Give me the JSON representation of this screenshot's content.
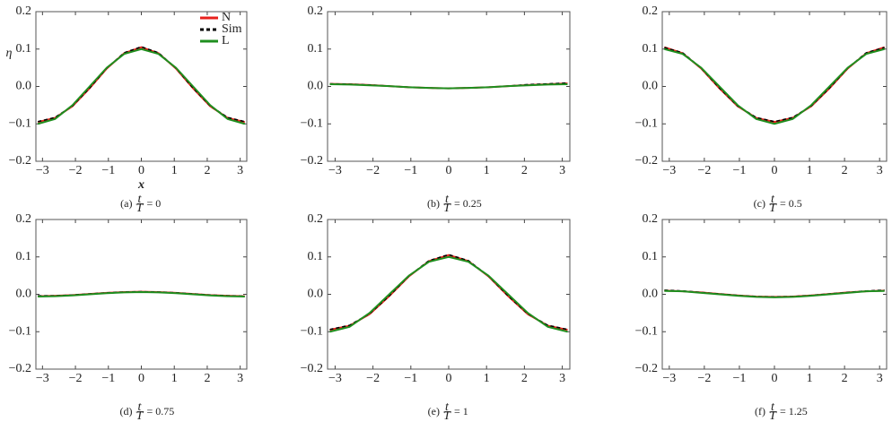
{
  "chart_data": [
    {
      "type": "line",
      "caption": {
        "label": "(a)",
        "numerator": "t",
        "denominator": "T",
        "rest": "= 0"
      },
      "x_label": "x",
      "y_label": "η",
      "legend": "upper right",
      "x": [
        -3.14,
        -2.62,
        -2.09,
        -1.57,
        -1.05,
        -0.52,
        0,
        0.52,
        1.05,
        1.57,
        2.09,
        2.62,
        3.14
      ],
      "series": [
        {
          "name": "N",
          "color": "#e8201c",
          "values": [
            -0.095,
            -0.084,
            -0.053,
            -0.005,
            0.048,
            0.089,
            0.105,
            0.089,
            0.048,
            -0.005,
            -0.053,
            -0.084,
            -0.095
          ]
        },
        {
          "name": "Sim",
          "color": "#000000",
          "dashed": true,
          "values": [
            -0.094,
            -0.083,
            -0.052,
            -0.004,
            0.049,
            0.09,
            0.106,
            0.09,
            0.049,
            -0.004,
            -0.052,
            -0.083,
            -0.094
          ]
        },
        {
          "name": "L",
          "color": "#1f8f1f",
          "values": [
            -0.1,
            -0.087,
            -0.05,
            0,
            0.05,
            0.087,
            0.1,
            0.087,
            0.05,
            0,
            -0.05,
            -0.087,
            -0.1
          ]
        }
      ],
      "xlim": [
        -3.2,
        3.2
      ],
      "ylim": [
        -0.2,
        0.2
      ],
      "xticks": [
        {
          "value": -3,
          "label": "−3"
        },
        {
          "value": -2,
          "label": "−2"
        },
        {
          "value": -1,
          "label": "−1"
        },
        0,
        1,
        2,
        3
      ],
      "yticks": [
        {
          "value": -0.2,
          "label": "−0.2"
        },
        {
          "value": -0.1,
          "label": "−0.1"
        },
        {
          "value": 0,
          "label": "0.0"
        },
        0.1,
        0.2
      ]
    },
    {
      "type": "line",
      "caption": {
        "label": "(b)",
        "numerator": "t",
        "denominator": "T",
        "rest": "= 0.25"
      },
      "x": [
        -3.14,
        -2.62,
        -2.09,
        -1.57,
        -1.05,
        -0.52,
        0,
        0.52,
        1.05,
        1.57,
        2.09,
        2.62,
        3.14
      ],
      "series": [
        {
          "color": "#e8201c",
          "values": [
            0.007,
            0.006,
            0.004,
            0.001,
            -0.002,
            -0.004,
            -0.005,
            -0.004,
            -0.002,
            0.001,
            0.004,
            0.006,
            0.008
          ]
        },
        {
          "color": "#000000",
          "dashed": true,
          "values": [
            0.007,
            0.006,
            0.004,
            0.001,
            -0.002,
            -0.004,
            -0.005,
            -0.004,
            -0.002,
            0.001,
            0.005,
            0.007,
            0.009
          ]
        },
        {
          "color": "#1f8f1f",
          "values": [
            0.006,
            0.005,
            0.003,
            0.001,
            -0.002,
            -0.004,
            -0.005,
            -0.004,
            -0.002,
            0.001,
            0.003,
            0.005,
            0.006
          ]
        }
      ],
      "xlim": [
        -3.2,
        3.2
      ],
      "ylim": [
        -0.2,
        0.2
      ],
      "xticks": [
        {
          "value": -3,
          "label": "−3"
        },
        {
          "value": -2,
          "label": "−2"
        },
        {
          "value": -1,
          "label": "−1"
        },
        0,
        1,
        2,
        3
      ],
      "yticks": [
        {
          "value": -0.2,
          "label": "−0.2"
        },
        {
          "value": -0.1,
          "label": "−0.1"
        },
        {
          "value": 0,
          "label": "0.0"
        },
        0.1,
        0.2
      ]
    },
    {
      "type": "line",
      "caption": {
        "label": "(c)",
        "numerator": "t",
        "denominator": "T",
        "rest": "= 0.5"
      },
      "x": [
        -3.14,
        -2.62,
        -2.09,
        -1.57,
        -1.05,
        -0.52,
        0,
        0.52,
        1.05,
        1.57,
        2.09,
        2.62,
        3.14
      ],
      "series": [
        {
          "color": "#e8201c",
          "values": [
            0.105,
            0.089,
            0.048,
            -0.005,
            -0.053,
            -0.084,
            -0.095,
            -0.084,
            -0.053,
            -0.005,
            0.048,
            0.089,
            0.105
          ]
        },
        {
          "color": "#000000",
          "dashed": true,
          "values": [
            0.104,
            0.09,
            0.049,
            -0.004,
            -0.052,
            -0.083,
            -0.094,
            -0.083,
            -0.052,
            -0.004,
            0.049,
            0.09,
            0.104
          ]
        },
        {
          "color": "#1f8f1f",
          "values": [
            0.1,
            0.087,
            0.05,
            0,
            -0.05,
            -0.087,
            -0.1,
            -0.087,
            -0.05,
            0,
            0.05,
            0.087,
            0.1
          ]
        }
      ],
      "xlim": [
        -3.2,
        3.2
      ],
      "ylim": [
        -0.2,
        0.2
      ],
      "xticks": [
        {
          "value": -3,
          "label": "−3"
        },
        {
          "value": -2,
          "label": "−2"
        },
        {
          "value": -1,
          "label": "−1"
        },
        0,
        1,
        2,
        3
      ],
      "yticks": [
        {
          "value": -0.2,
          "label": "−0.2"
        },
        {
          "value": -0.1,
          "label": "−0.1"
        },
        {
          "value": 0,
          "label": "0.0"
        },
        0.1,
        0.2
      ]
    },
    {
      "type": "line",
      "caption": {
        "label": "(d)",
        "numerator": "t",
        "denominator": "T",
        "rest": "= 0.75"
      },
      "x": [
        -3.14,
        -2.62,
        -2.09,
        -1.57,
        -1.05,
        -0.52,
        0,
        0.52,
        1.05,
        1.57,
        2.09,
        2.62,
        3.14
      ],
      "series": [
        {
          "color": "#e8201c",
          "values": [
            -0.005,
            -0.004,
            -0.002,
            0.001,
            0.004,
            0.006,
            0.007,
            0.006,
            0.004,
            0.001,
            -0.002,
            -0.004,
            -0.005
          ]
        },
        {
          "color": "#000000",
          "dashed": true,
          "values": [
            -0.004,
            -0.004,
            -0.002,
            0.001,
            0.004,
            0.006,
            0.007,
            0.006,
            0.004,
            0.001,
            -0.002,
            -0.004,
            -0.005
          ]
        },
        {
          "color": "#1f8f1f",
          "values": [
            -0.006,
            -0.005,
            -0.003,
            0,
            0.003,
            0.005,
            0.006,
            0.005,
            0.003,
            0,
            -0.003,
            -0.005,
            -0.006
          ]
        }
      ],
      "xlim": [
        -3.2,
        3.2
      ],
      "ylim": [
        -0.2,
        0.2
      ],
      "xticks": [
        {
          "value": -3,
          "label": "−3"
        },
        {
          "value": -2,
          "label": "−2"
        },
        {
          "value": -1,
          "label": "−1"
        },
        0,
        1,
        2,
        3
      ],
      "yticks": [
        {
          "value": -0.2,
          "label": "−0.2"
        },
        {
          "value": -0.1,
          "label": "−0.1"
        },
        {
          "value": 0,
          "label": "0.0"
        },
        0.1,
        0.2
      ]
    },
    {
      "type": "line",
      "caption": {
        "label": "(e)",
        "numerator": "t",
        "denominator": "T",
        "rest": "= 1"
      },
      "x": [
        -3.14,
        -2.62,
        -2.09,
        -1.57,
        -1.05,
        -0.52,
        0,
        0.52,
        1.05,
        1.57,
        2.09,
        2.62,
        3.14
      ],
      "series": [
        {
          "color": "#e8201c",
          "values": [
            -0.095,
            -0.084,
            -0.053,
            -0.005,
            0.048,
            0.089,
            0.105,
            0.089,
            0.048,
            -0.005,
            -0.053,
            -0.084,
            -0.095
          ]
        },
        {
          "color": "#000000",
          "dashed": true,
          "values": [
            -0.094,
            -0.083,
            -0.052,
            -0.004,
            0.049,
            0.09,
            0.106,
            0.09,
            0.049,
            -0.004,
            -0.052,
            -0.083,
            -0.094
          ]
        },
        {
          "color": "#1f8f1f",
          "values": [
            -0.1,
            -0.087,
            -0.05,
            0,
            0.05,
            0.087,
            0.1,
            0.087,
            0.05,
            0,
            -0.05,
            -0.087,
            -0.1
          ]
        }
      ],
      "xlim": [
        -3.2,
        3.2
      ],
      "ylim": [
        -0.2,
        0.2
      ],
      "xticks": [
        {
          "value": -3,
          "label": "−3"
        },
        {
          "value": -2,
          "label": "−2"
        },
        {
          "value": -1,
          "label": "−1"
        },
        0,
        1,
        2,
        3
      ],
      "yticks": [
        {
          "value": -0.2,
          "label": "−0.2"
        },
        {
          "value": -0.1,
          "label": "−0.1"
        },
        {
          "value": 0,
          "label": "0.0"
        },
        0.1,
        0.2
      ]
    },
    {
      "type": "line",
      "caption": {
        "label": "(f)",
        "numerator": "t",
        "denominator": "T",
        "rest": "= 1.25"
      },
      "x": [
        -3.14,
        -2.62,
        -2.09,
        -1.57,
        -1.05,
        -0.52,
        0,
        0.52,
        1.05,
        1.57,
        2.09,
        2.62,
        3.14
      ],
      "series": [
        {
          "color": "#e8201c",
          "values": [
            0.01,
            0.008,
            0.005,
            0.001,
            -0.003,
            -0.006,
            -0.007,
            -0.006,
            -0.003,
            0.001,
            0.005,
            0.008,
            0.01
          ]
        },
        {
          "color": "#000000",
          "dashed": true,
          "values": [
            0.011,
            0.009,
            0.005,
            0.001,
            -0.003,
            -0.006,
            -0.007,
            -0.006,
            -0.003,
            0.001,
            0.005,
            0.009,
            0.011
          ]
        },
        {
          "color": "#1f8f1f",
          "values": [
            0.009,
            0.008,
            0.004,
            0,
            -0.004,
            -0.007,
            -0.008,
            -0.007,
            -0.004,
            0,
            0.004,
            0.008,
            0.009
          ]
        }
      ],
      "xlim": [
        -3.2,
        3.2
      ],
      "ylim": [
        -0.2,
        0.2
      ],
      "xticks": [
        {
          "value": -3,
          "label": "−3"
        },
        {
          "value": -2,
          "label": "−2"
        },
        {
          "value": -1,
          "label": "−1"
        },
        0,
        1,
        2,
        3
      ],
      "yticks": [
        {
          "value": -0.2,
          "label": "−0.2"
        },
        {
          "value": -0.1,
          "label": "−0.1"
        },
        {
          "value": 0,
          "label": "0.0"
        },
        0.1,
        0.2
      ]
    }
  ]
}
